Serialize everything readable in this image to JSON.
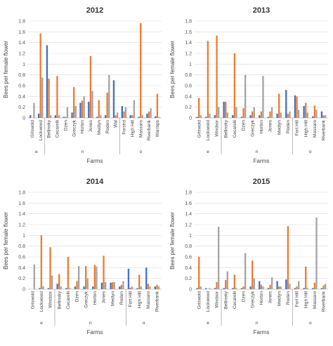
{
  "chart_data": [
    {
      "type": "bar",
      "title": "2012",
      "xlabel": "Farms",
      "ylabel": "Bees per female flower",
      "ylim": [
        0,
        1.8
      ],
      "yticks": [
        "0",
        "0.2",
        "0.4",
        "0.6",
        "0.8",
        "1",
        "1.2",
        "1.4",
        "1.6",
        "1.8"
      ],
      "grid": true,
      "categories": [
        "Griswold",
        "Lockwood",
        "Bellinsky",
        "Cecarelli",
        "Dzen",
        "Greczyk",
        "Horton",
        "Jones",
        "Medlyn",
        "Roden",
        "Wal",
        "Forstrd",
        "High Hill",
        "Massaro",
        "Riverbank",
        "Warrops"
      ],
      "groups": [
        {
          "label": "e",
          "start": 0,
          "end": 1
        },
        {
          "label": "n",
          "start": 2,
          "end": 10
        },
        {
          "label": "o",
          "start": 11,
          "end": 15
        }
      ],
      "series": [
        {
          "color": "#4472c4",
          "values": [
            0.05,
            0.08,
            1.35,
            0.05,
            0.02,
            0.1,
            0.28,
            0.3,
            0.02,
            0.05,
            0.7,
            0.22,
            0.05,
            0.02,
            0.08,
            0.03
          ]
        },
        {
          "color": "#ed7d31",
          "values": [
            0,
            1.57,
            0.73,
            0.78,
            0.02,
            0.57,
            0.32,
            1.15,
            0.33,
            0.47,
            0.05,
            0.12,
            0.05,
            1.76,
            0.12,
            0.45
          ]
        },
        {
          "color": "#a5a5a5",
          "values": [
            0.28,
            0.75,
            0.05,
            0.05,
            0.2,
            0.22,
            0.4,
            0.5,
            0.05,
            0.8,
            0.1,
            0.2,
            0.33,
            0.05,
            0.18,
            0.02
          ]
        }
      ]
    },
    {
      "type": "bar",
      "title": "2013",
      "xlabel": "Farms",
      "ylabel": "Bees per female flower",
      "ylim": [
        0,
        1.8
      ],
      "yticks": [
        "0",
        "0.2",
        "0.4",
        "0.6",
        "0.8",
        "1",
        "1.2",
        "1.4",
        "1.6",
        "1.8"
      ],
      "grid": true,
      "categories": [
        "Griswold",
        "Lockwood",
        "Windsor",
        "Bellinsky",
        "Cecarelli",
        "Dzen",
        "Greczyk",
        "Horton",
        "Jones",
        "Medlyn",
        "Roden",
        "Fort Hill",
        "High Hill",
        "Massaro",
        "Riverbank"
      ],
      "groups": [
        {
          "label": "e",
          "start": 0,
          "end": 2
        },
        {
          "label": "n",
          "start": 3,
          "end": 10
        },
        {
          "label": "o",
          "start": 11,
          "end": 14
        }
      ],
      "series": [
        {
          "color": "#4472c4",
          "values": [
            0.02,
            0.02,
            0.05,
            0.3,
            0.05,
            0.02,
            0.05,
            0.05,
            0.02,
            0.08,
            0.52,
            0.42,
            0.22,
            0.03,
            0.12
          ]
        },
        {
          "color": "#ed7d31",
          "values": [
            0.37,
            1.43,
            1.53,
            0.3,
            1.2,
            0.18,
            0.12,
            0.12,
            0.12,
            0.45,
            0.08,
            0.4,
            0.28,
            0.23,
            0.05
          ]
        },
        {
          "color": "#a5a5a5",
          "values": [
            0.05,
            0.08,
            0.2,
            0.1,
            0.2,
            0.8,
            0.2,
            0.78,
            0.2,
            0.1,
            0.12,
            0.15,
            0.1,
            0.15,
            0.05
          ]
        }
      ]
    },
    {
      "type": "bar",
      "title": "2014",
      "xlabel": "Farms",
      "ylabel": "Bees per female flower",
      "ylim": [
        0,
        1.8
      ],
      "yticks": [
        "0",
        "0.2",
        "0.4",
        "0.6",
        "0.8",
        "1",
        "1.2",
        "1.4",
        "1.6",
        "1.8"
      ],
      "grid": true,
      "categories": [
        "Griswold",
        "Lockwood",
        "Windsor",
        "Bellinsky",
        "Cecarelli",
        "Dzen",
        "Greczyk",
        "Horton",
        "Jones",
        "Medlyn",
        "Roden",
        "Fort Hill",
        "High Hill",
        "Massaro",
        "Riverbank"
      ],
      "groups": [
        {
          "label": "e",
          "start": 0,
          "end": 2
        },
        {
          "label": "n",
          "start": 3,
          "end": 10
        },
        {
          "label": "o",
          "start": 11,
          "end": 14
        }
      ],
      "series": [
        {
          "color": "#4472c4",
          "values": [
            0,
            0.02,
            0.02,
            0.1,
            0.02,
            0.05,
            0.05,
            0.05,
            0.12,
            0.12,
            0.05,
            0.38,
            0.02,
            0.4,
            0.05
          ]
        },
        {
          "color": "#ed7d31",
          "values": [
            0,
            1.0,
            0.78,
            0.28,
            0.6,
            0.15,
            0.43,
            0.45,
            0.62,
            0.13,
            0.08,
            0.03,
            0.27,
            0.1,
            0.08
          ]
        },
        {
          "color": "#a5a5a5",
          "values": [
            0.46,
            0.05,
            0.25,
            0.05,
            0.02,
            0.43,
            0.2,
            0.42,
            0.13,
            0.13,
            0.15,
            0.05,
            0.05,
            0.05,
            0.05
          ]
        }
      ]
    },
    {
      "type": "bar",
      "title": "2015",
      "xlabel": "Farms",
      "ylabel": "Bees per female flower",
      "ylim": [
        0,
        1.8
      ],
      "yticks": [
        "0",
        "0.2",
        "0.4",
        "0.6",
        "0.8",
        "1",
        "1.2",
        "1.4",
        "1.6",
        "1.8"
      ],
      "grid": true,
      "categories": [
        "Griswold",
        "Lockwood",
        "Windsor",
        "Bellinsky",
        "Cecarelli",
        "Dzen",
        "Greczyk",
        "Horton",
        "Jones",
        "Medlyn",
        "Roden",
        "Fort Hill",
        "High Hill",
        "Massaro",
        "Riverbank"
      ],
      "groups": [
        {
          "label": "e",
          "start": 0,
          "end": 2
        },
        {
          "label": "n",
          "start": 3,
          "end": 10
        },
        {
          "label": "o",
          "start": 11,
          "end": 14
        }
      ],
      "series": [
        {
          "color": "#4472c4",
          "values": [
            0.02,
            0.02,
            0.02,
            0.02,
            0.02,
            0.02,
            0.05,
            0.15,
            0.02,
            0.15,
            0.18,
            0.02,
            0.02,
            0.02,
            0.02
          ]
        },
        {
          "color": "#ed7d31",
          "values": [
            0.6,
            0,
            0.13,
            0.17,
            0.27,
            0.05,
            0.53,
            0.08,
            0.08,
            0.05,
            1.17,
            0.05,
            0.42,
            0.12,
            0.07
          ]
        },
        {
          "color": "#a5a5a5",
          "values": [
            0.05,
            0.02,
            1.16,
            0.33,
            0.02,
            0.67,
            0.2,
            0.05,
            0.22,
            0.05,
            0.1,
            0.15,
            0.02,
            1.33,
            0.1
          ]
        }
      ]
    }
  ]
}
